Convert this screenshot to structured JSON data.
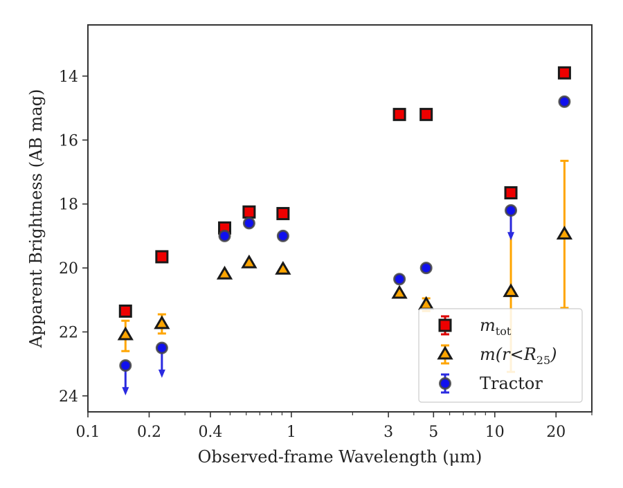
{
  "chart_data": {
    "type": "scatter",
    "title": "",
    "xlabel": "Observed-frame Wavelength (μm)",
    "ylabel": "Apparent Brightness (AB mag)",
    "x_scale": "log",
    "xlim": [
      0.1,
      30
    ],
    "ylim": [
      24.5,
      12.4
    ],
    "y_inverted": true,
    "x_ticks": [
      {
        "value": 0.1,
        "label": "0.1"
      },
      {
        "value": 0.2,
        "label": "0.2"
      },
      {
        "value": 0.4,
        "label": "0.4"
      },
      {
        "value": 1,
        "label": "1"
      },
      {
        "value": 3,
        "label": "3"
      },
      {
        "value": 5,
        "label": "5"
      },
      {
        "value": 10,
        "label": "10"
      },
      {
        "value": 20,
        "label": "20"
      }
    ],
    "y_ticks": [
      {
        "value": 14,
        "label": "14"
      },
      {
        "value": 16,
        "label": "16"
      },
      {
        "value": 18,
        "label": "18"
      },
      {
        "value": 20,
        "label": "20"
      },
      {
        "value": 22,
        "label": "22"
      },
      {
        "value": 24,
        "label": "24"
      }
    ],
    "grid": false,
    "legend_position": "lower-right",
    "series": [
      {
        "name": "m_tot",
        "legend_main": "m",
        "legend_sub": "tot",
        "marker": "square",
        "color": "#ee0000",
        "edge_color": "#1a1a1a",
        "error_color": "#dd0000",
        "points": [
          {
            "x": 0.153,
            "y": 21.35
          },
          {
            "x": 0.231,
            "y": 19.65
          },
          {
            "x": 0.47,
            "y": 18.75
          },
          {
            "x": 0.62,
            "y": 18.25
          },
          {
            "x": 0.91,
            "y": 18.3
          },
          {
            "x": 3.4,
            "y": 15.2
          },
          {
            "x": 4.6,
            "y": 15.2
          },
          {
            "x": 12.0,
            "y": 17.65
          },
          {
            "x": 22.0,
            "y": 13.9
          }
        ]
      },
      {
        "name": "m(r<R_25)",
        "legend_main": "m(r<R",
        "legend_sub": "25",
        "legend_tail": ")",
        "marker": "triangle",
        "color": "#ffa500",
        "edge_color": "#1a1a1a",
        "error_color": "#ffa500",
        "points": [
          {
            "x": 0.153,
            "y": 22.1,
            "yerr_minus": 0.45,
            "yerr_plus": 0.5
          },
          {
            "x": 0.231,
            "y": 21.75,
            "yerr_minus": 0.3,
            "yerr_plus": 0.3
          },
          {
            "x": 0.47,
            "y": 20.2
          },
          {
            "x": 0.62,
            "y": 19.85
          },
          {
            "x": 0.91,
            "y": 20.05
          },
          {
            "x": 3.4,
            "y": 20.8
          },
          {
            "x": 4.6,
            "y": 21.15,
            "yerr_minus": 0.2,
            "yerr_plus": 0.2
          },
          {
            "x": 12.0,
            "y": 20.75,
            "yerr_minus": 2.5,
            "yerr_plus": 2.5
          },
          {
            "x": 22.0,
            "y": 18.95,
            "yerr_minus": 2.3,
            "yerr_plus": 2.3
          }
        ]
      },
      {
        "name": "Tractor",
        "legend_main": "Tractor",
        "marker": "circle",
        "color": "#1010ee",
        "edge_color": "#444444",
        "error_color": "#2a2ae0",
        "points": [
          {
            "x": 0.153,
            "y": 23.05,
            "upper_limit": true,
            "arrow_to": 23.9
          },
          {
            "x": 0.231,
            "y": 22.5,
            "upper_limit": true,
            "arrow_to": 23.35
          },
          {
            "x": 0.47,
            "y": 19.0
          },
          {
            "x": 0.62,
            "y": 18.6
          },
          {
            "x": 0.91,
            "y": 19.0
          },
          {
            "x": 3.4,
            "y": 20.35
          },
          {
            "x": 4.6,
            "y": 20.0
          },
          {
            "x": 12.0,
            "y": 18.2,
            "upper_limit": true,
            "arrow_to": 19.05
          },
          {
            "x": 22.0,
            "y": 14.8
          }
        ]
      }
    ]
  }
}
